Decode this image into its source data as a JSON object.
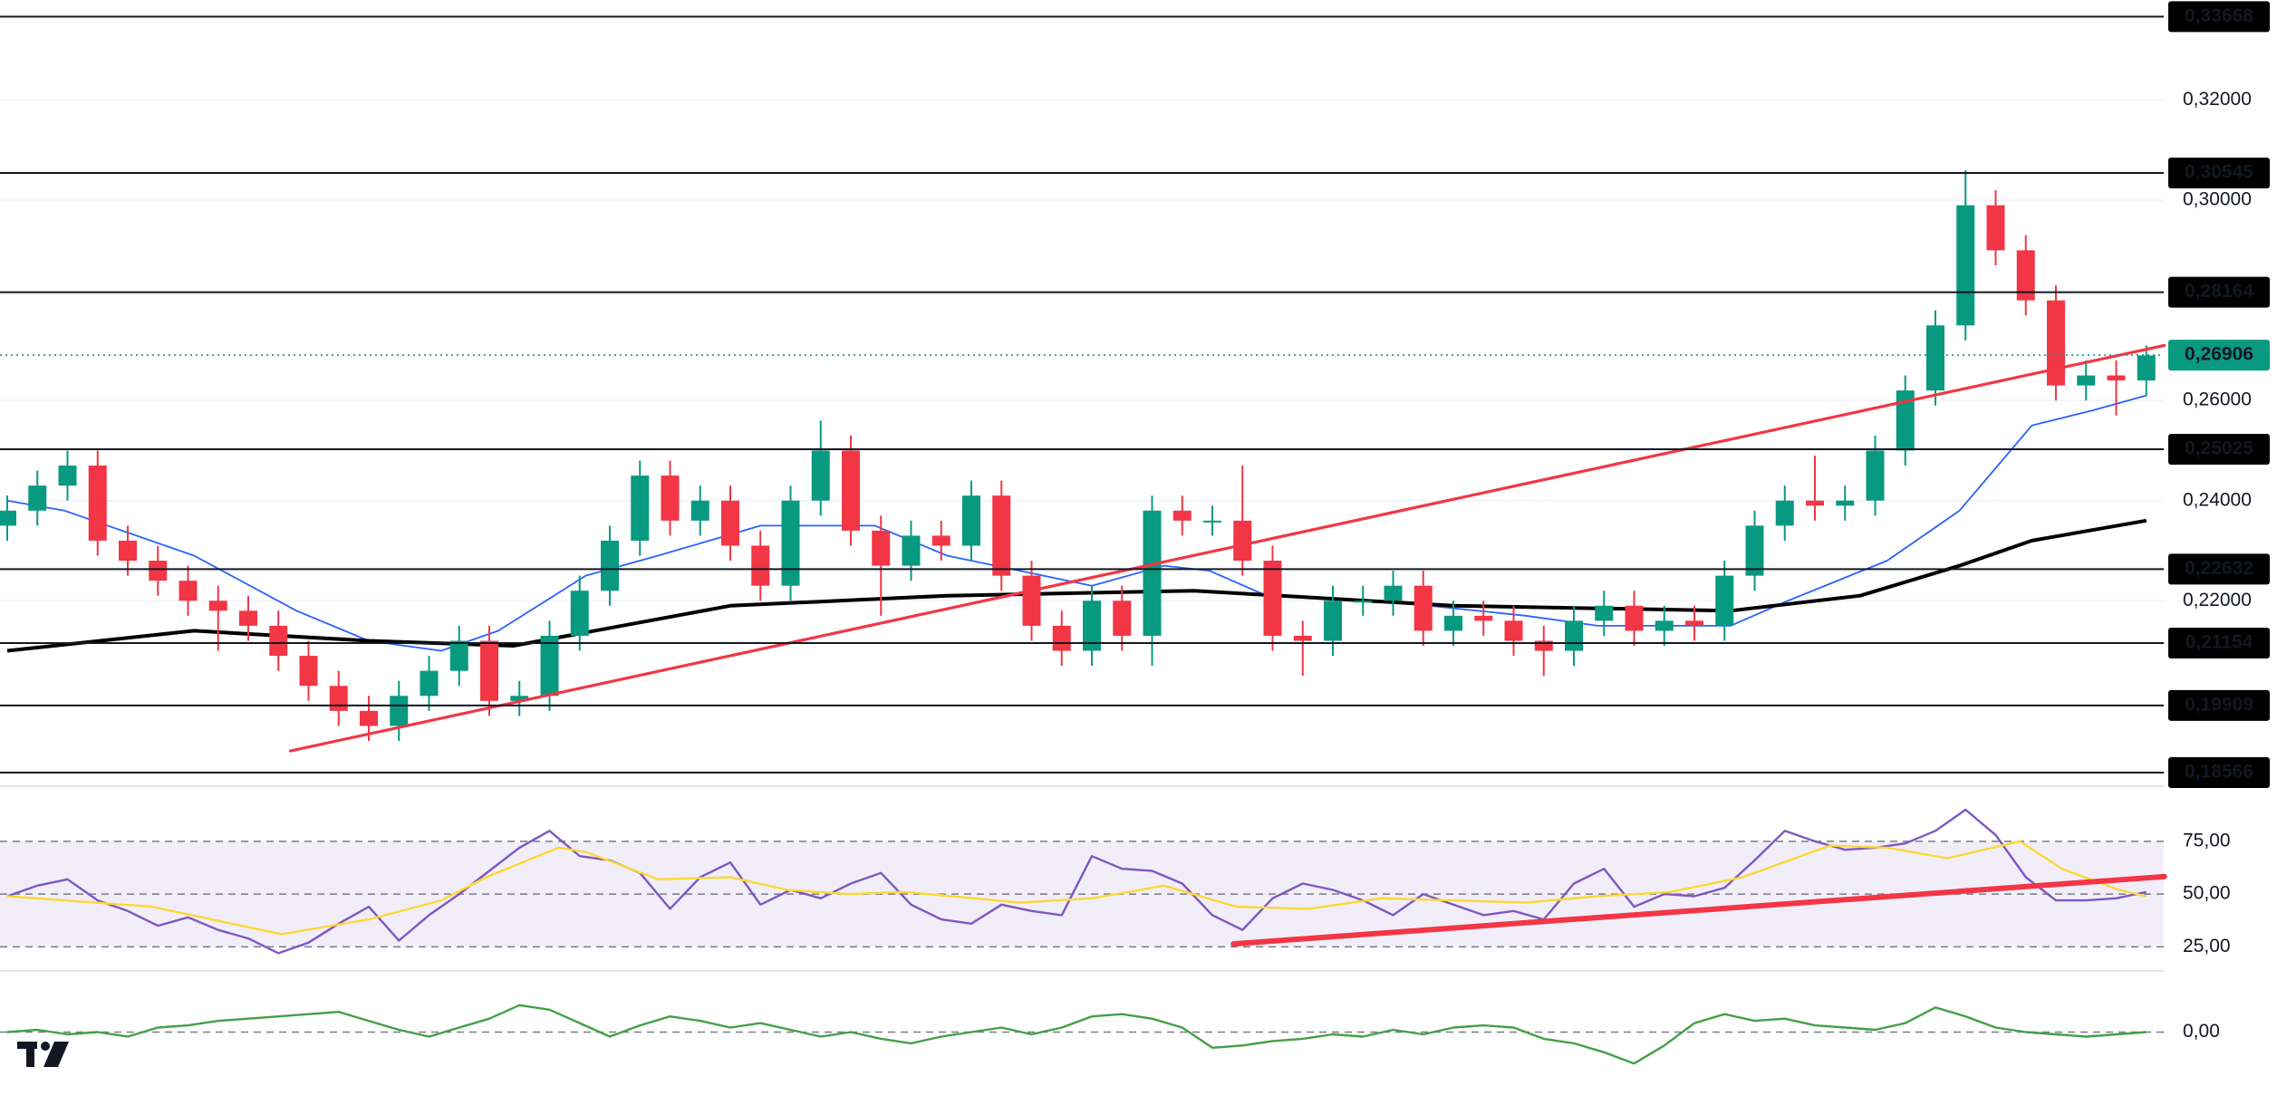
{
  "chart_data": [
    {
      "type": "candlestick",
      "open": [
        0.235,
        0.238,
        0.243,
        0.247,
        0.232,
        0.228,
        0.224,
        0.22,
        0.218,
        0.215,
        0.209,
        0.203,
        0.198,
        0.195,
        0.201,
        0.206,
        0.212,
        0.2,
        0.201,
        0.213,
        0.222,
        0.232,
        0.245,
        0.236,
        0.24,
        0.231,
        0.223,
        0.24,
        0.25,
        0.234,
        0.227,
        0.233,
        0.231,
        0.241,
        0.225,
        0.215,
        0.21,
        0.22,
        0.213,
        0.238,
        0.236,
        0.236,
        0.228,
        0.213,
        0.212,
        0.22,
        0.22,
        0.223,
        0.214,
        0.217,
        0.216,
        0.212,
        0.21,
        0.216,
        0.219,
        0.214,
        0.216,
        0.215,
        0.225,
        0.235,
        0.24,
        0.239,
        0.24,
        0.25,
        0.262,
        0.275,
        0.299,
        0.29,
        0.28,
        0.263,
        0.265,
        0.264
      ],
      "high": [
        0.241,
        0.246,
        0.25,
        0.25,
        0.235,
        0.231,
        0.227,
        0.223,
        0.221,
        0.218,
        0.212,
        0.206,
        0.201,
        0.204,
        0.209,
        0.215,
        0.215,
        0.204,
        0.216,
        0.225,
        0.235,
        0.248,
        0.248,
        0.243,
        0.243,
        0.234,
        0.243,
        0.256,
        0.253,
        0.237,
        0.236,
        0.236,
        0.244,
        0.244,
        0.228,
        0.218,
        0.223,
        0.223,
        0.241,
        0.241,
        0.239,
        0.247,
        0.231,
        0.216,
        0.223,
        0.223,
        0.226,
        0.226,
        0.22,
        0.22,
        0.219,
        0.215,
        0.219,
        0.222,
        0.222,
        0.219,
        0.219,
        0.228,
        0.238,
        0.243,
        0.249,
        0.243,
        0.253,
        0.265,
        0.278,
        0.306,
        0.302,
        0.293,
        0.283,
        0.268,
        0.268,
        0.271
      ],
      "low": [
        0.232,
        0.235,
        0.24,
        0.229,
        0.225,
        0.221,
        0.217,
        0.21,
        0.212,
        0.206,
        0.2,
        0.195,
        0.192,
        0.192,
        0.198,
        0.203,
        0.197,
        0.197,
        0.198,
        0.21,
        0.219,
        0.229,
        0.233,
        0.233,
        0.228,
        0.22,
        0.22,
        0.237,
        0.231,
        0.217,
        0.224,
        0.228,
        0.228,
        0.222,
        0.212,
        0.207,
        0.207,
        0.21,
        0.207,
        0.233,
        0.233,
        0.225,
        0.21,
        0.205,
        0.209,
        0.217,
        0.217,
        0.211,
        0.211,
        0.213,
        0.209,
        0.205,
        0.207,
        0.213,
        0.211,
        0.211,
        0.212,
        0.212,
        0.222,
        0.232,
        0.236,
        0.236,
        0.237,
        0.247,
        0.259,
        0.272,
        0.287,
        0.277,
        0.26,
        0.26,
        0.257,
        0.261
      ],
      "close": [
        0.238,
        0.243,
        0.247,
        0.232,
        0.228,
        0.224,
        0.22,
        0.218,
        0.215,
        0.209,
        0.203,
        0.198,
        0.195,
        0.201,
        0.206,
        0.212,
        0.2,
        0.201,
        0.213,
        0.222,
        0.232,
        0.245,
        0.236,
        0.24,
        0.231,
        0.223,
        0.24,
        0.25,
        0.234,
        0.227,
        0.233,
        0.231,
        0.241,
        0.225,
        0.215,
        0.21,
        0.22,
        0.213,
        0.238,
        0.236,
        0.236,
        0.228,
        0.213,
        0.212,
        0.22,
        0.22,
        0.223,
        0.214,
        0.217,
        0.216,
        0.212,
        0.21,
        0.216,
        0.219,
        0.214,
        0.216,
        0.215,
        0.225,
        0.235,
        0.24,
        0.239,
        0.24,
        0.25,
        0.262,
        0.275,
        0.299,
        0.29,
        0.28,
        0.263,
        0.265,
        0.264,
        0.269
      ],
      "up_color": "#089981",
      "down_color": "#f23645",
      "ylim": [
        0.1835,
        0.34
      ],
      "yticks": [
        {
          "value": 0.22,
          "label": "0,22000"
        },
        {
          "value": 0.24,
          "label": "0,24000"
        },
        {
          "value": 0.26,
          "label": "0,26000"
        },
        {
          "value": 0.3,
          "label": "0,30000"
        },
        {
          "value": 0.32,
          "label": "0,32000"
        }
      ],
      "grid": true,
      "levels": [
        {
          "value": 0.33668,
          "label": "0,33668"
        },
        {
          "value": 0.30545,
          "label": "0,30545"
        },
        {
          "value": 0.28164,
          "label": "0,28164"
        },
        {
          "value": 0.25025,
          "label": "0,25025"
        },
        {
          "value": 0.22632,
          "label": "0,22632"
        },
        {
          "value": 0.21154,
          "label": "0,21154"
        },
        {
          "value": 0.19909,
          "label": "0,19909"
        },
        {
          "value": 0.18566,
          "label": "0,18566"
        }
      ],
      "last_price": {
        "value": 0.26906,
        "label": "0,26906",
        "color": "#089981"
      },
      "series": [
        {
          "color": "#2962ff",
          "x": [
            1,
            2.9,
            7.2,
            10.6,
            13,
            15.4,
            17.3,
            20.2,
            22.6,
            26,
            29.8,
            32.2,
            34.6,
            37,
            39.4,
            40.9,
            42.8,
            46.6,
            51.4,
            53.8,
            58.2,
            60.1,
            63.4,
            65.8,
            68.2,
            70.2,
            72
          ],
          "values": [
            0.24,
            0.238,
            0.229,
            0.218,
            0.212,
            0.21,
            0.214,
            0.225,
            0.229,
            0.235,
            0.235,
            0.229,
            0.226,
            0.223,
            0.227,
            0.226,
            0.221,
            0.22,
            0.217,
            0.215,
            0.215,
            0.22,
            0.228,
            0.238,
            0.255,
            0.258,
            0.261
          ]
        },
        {
          "color": "#000000",
          "x": [
            1,
            7.2,
            13,
            17.8,
            25,
            32.2,
            40.4,
            49,
            58.2,
            62.5,
            65.8,
            68.2,
            72
          ],
          "values": [
            0.21,
            0.214,
            0.212,
            0.211,
            0.219,
            0.221,
            0.222,
            0.219,
            0.218,
            0.221,
            0.227,
            0.232,
            0.236
          ]
        }
      ],
      "trendlines": [
        {
          "color": "#f23645",
          "x": [
            10.4,
            72.6
          ],
          "values": [
            0.19,
            0.271
          ]
        }
      ]
    },
    {
      "type": "line",
      "ylim": [
        14,
        99
      ],
      "yticks": [
        {
          "value": 25,
          "label": "25,00"
        },
        {
          "value": 50,
          "label": "50,00"
        },
        {
          "value": 75,
          "label": "75,00"
        }
      ],
      "band_color": "#7e57c2",
      "series": [
        {
          "color": "#7e57c2",
          "values": [
            49,
            54,
            57,
            47,
            42,
            35,
            39,
            33,
            29,
            22,
            27,
            36,
            44,
            28,
            40,
            50,
            61,
            72,
            80,
            68,
            66,
            60,
            43,
            58,
            65,
            45,
            52,
            48,
            55,
            60,
            45,
            38,
            36,
            45,
            42,
            40,
            68,
            62,
            61,
            55,
            40,
            33,
            48,
            55,
            52,
            47,
            40,
            50,
            45,
            40,
            42,
            38,
            55,
            62,
            44,
            50,
            49,
            53,
            66,
            80,
            75,
            71,
            72,
            74,
            80,
            90,
            78,
            58,
            47,
            47,
            48,
            51
          ]
        },
        {
          "color": "#fdd835",
          "x": [
            1,
            5.8,
            10.1,
            13,
            15.4,
            16.9,
            19.3,
            20.2,
            22.6,
            25,
            26.9,
            28.9,
            30.8,
            34.6,
            37,
            39.4,
            41.8,
            44.2,
            46.6,
            49,
            51.4,
            53.8,
            56.2,
            58.6,
            61.5,
            63.4,
            65.4,
            67.8,
            69.2,
            71.1,
            72
          ],
          "values": [
            49,
            44,
            31,
            38,
            47,
            58,
            72,
            70,
            57,
            58,
            52,
            50,
            51,
            46,
            48,
            54,
            44,
            43,
            48,
            47,
            46,
            49,
            51,
            58,
            73,
            72,
            67,
            75,
            62,
            52,
            49
          ]
        }
      ],
      "trendlines": [
        {
          "color": "#f23645",
          "x": [
            41.7,
            72.6
          ],
          "values": [
            26.4,
            58.3
          ]
        }
      ]
    },
    {
      "type": "line",
      "ylim": [
        -1,
        1
      ],
      "yticks": [
        {
          "value": 0,
          "label": "0,00"
        }
      ],
      "series": [
        {
          "color": "#43a047",
          "values": [
            0,
            0.05,
            -0.05,
            0,
            -0.1,
            0.1,
            0.15,
            0.25,
            0.3,
            0.35,
            0.4,
            0.45,
            0.25,
            0.05,
            -0.1,
            0.1,
            0.3,
            0.6,
            0.5,
            0.2,
            -0.1,
            0.15,
            0.35,
            0.25,
            0.1,
            0.2,
            0.05,
            -0.1,
            0,
            -0.15,
            -0.25,
            -0.1,
            0,
            0.1,
            -0.05,
            0.1,
            0.35,
            0.4,
            0.3,
            0.1,
            -0.35,
            -0.3,
            -0.2,
            -0.15,
            -0.05,
            -0.1,
            0.05,
            -0.05,
            0.1,
            0.15,
            0.1,
            -0.15,
            -0.25,
            -0.45,
            -0.7,
            -0.3,
            0.2,
            0.4,
            0.25,
            0.3,
            0.15,
            0.1,
            0.05,
            0.2,
            0.55,
            0.35,
            0.1,
            0,
            -0.05,
            -0.1,
            -0.05,
            0
          ]
        }
      ]
    }
  ]
}
